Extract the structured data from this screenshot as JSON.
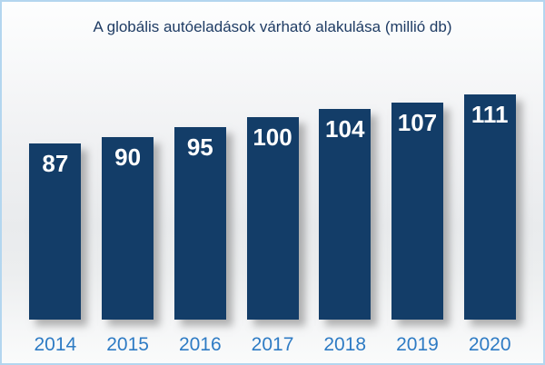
{
  "chart_data": {
    "type": "bar",
    "title": "A globális autóeladások várható alakulása (millió db)",
    "categories": [
      "2014",
      "2015",
      "2016",
      "2017",
      "2018",
      "2019",
      "2020"
    ],
    "values": [
      87,
      90,
      95,
      100,
      104,
      107,
      111
    ],
    "xlabel": "",
    "ylabel": "",
    "ylim": [
      0,
      111
    ],
    "grid": false,
    "legend": false,
    "value_labels_shown": true,
    "value_label_position": "inside-top",
    "bar_color": "#133d68",
    "value_label_color": "#ffffff",
    "category_label_color": "#2e7bc4",
    "title_color": "#1f3c64",
    "frame_border_color": "#b3d6ef"
  }
}
